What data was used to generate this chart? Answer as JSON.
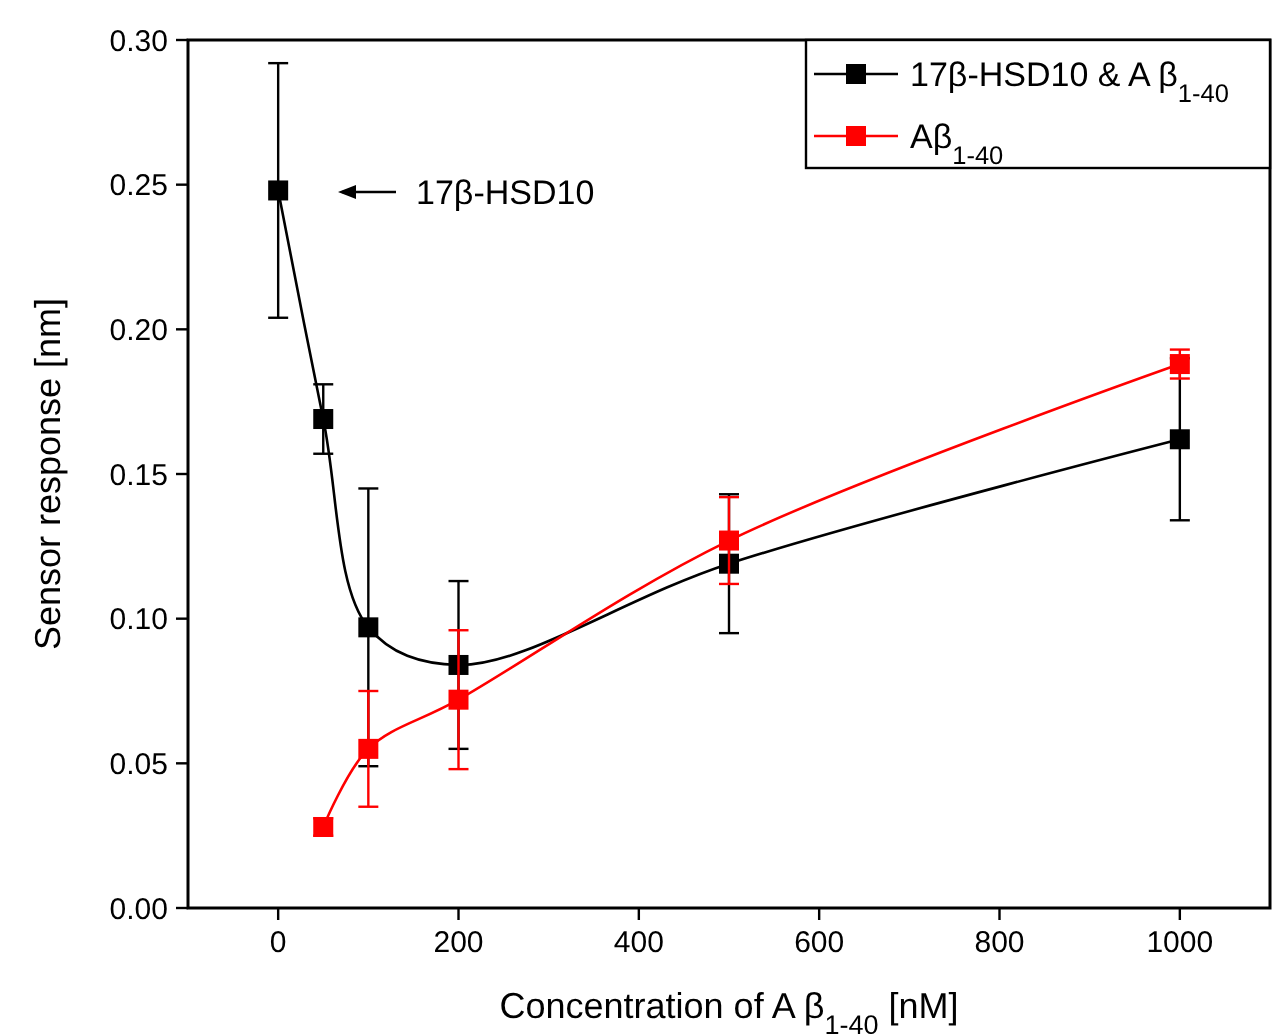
{
  "chart_data": {
    "type": "line",
    "xlabel": "Concentration of A β$_{1-40}$ [nM]",
    "ylabel": "Sensor response [nm]",
    "xlim": [
      -100,
      1100
    ],
    "xticks": [
      0,
      200,
      400,
      600,
      800,
      1000
    ],
    "ylim": [
      0,
      0.3
    ],
    "yticks": [
      {
        "value": 0,
        "label": "0.00"
      },
      {
        "value": 0.05,
        "label": "0.05"
      },
      {
        "value": 0.1,
        "label": "0.10"
      },
      {
        "value": 0.15,
        "label": "0.15"
      },
      {
        "value": 0.2,
        "label": "0.20"
      },
      {
        "value": 0.25,
        "label": "0.25"
      },
      {
        "value": 0.3,
        "label": "0.30"
      }
    ],
    "marker": "square",
    "legend": "top right",
    "grid": false,
    "series": [
      {
        "name": "17β-HSD10 & A β$_{1-40}$",
        "color": "#000000",
        "x": [
          0,
          50,
          100,
          200,
          500,
          1000
        ],
        "values": [
          0.248,
          0.169,
          0.097,
          0.084,
          0.119,
          0.162
        ],
        "errors": [
          0.044,
          0.012,
          0.048,
          0.029,
          0.024,
          0.028
        ]
      },
      {
        "name": "Aβ$_{1-40}$",
        "color": "#ff0000",
        "x": [
          50,
          100,
          200,
          500,
          1000
        ],
        "values": [
          0.028,
          0.055,
          0.072,
          0.127,
          0.188
        ],
        "errors": [
          0.003,
          0.02,
          0.024,
          0.015,
          0.005
        ]
      }
    ],
    "annotations": [
      "17β-HSD10"
    ]
  }
}
